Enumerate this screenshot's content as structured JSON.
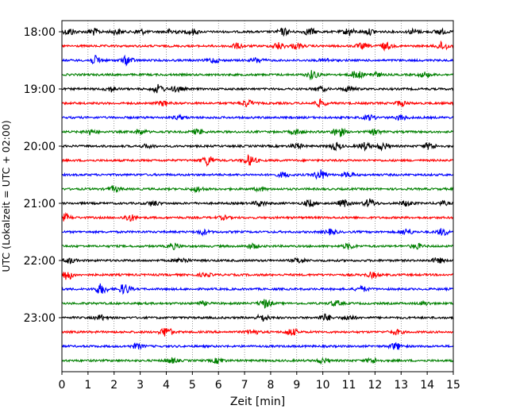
{
  "chart_data": {
    "type": "line",
    "title": "",
    "xlabel": "Zeit  [min]",
    "ylabel": "UTC (Lokalzeit = UTC + 02:00)",
    "xlim": [
      0,
      15
    ],
    "x_ticks": [
      "0",
      "1",
      "2",
      "3",
      "4",
      "5",
      "6",
      "7",
      "8",
      "9",
      "10",
      "11",
      "12",
      "13",
      "14",
      "15"
    ],
    "y_ticks": [
      "18:00",
      "19:00",
      "20:00",
      "21:00",
      "22:00",
      "23:00"
    ],
    "grid": "vertical dotted at each minute",
    "trace_colors": [
      "#000000",
      "#ff0000",
      "#0000ff",
      "#008000"
    ],
    "traces": [
      {
        "start": "18:00",
        "bursts": [
          [
            0.3,
            4
          ],
          [
            1.2,
            4
          ],
          [
            2.1,
            3
          ],
          [
            3.0,
            3
          ],
          [
            4.2,
            3
          ],
          [
            5.0,
            3
          ],
          [
            8.5,
            4
          ],
          [
            9.5,
            4
          ],
          [
            11.0,
            4
          ],
          [
            11.8,
            3
          ],
          [
            13.5,
            3
          ],
          [
            14.5,
            3
          ]
        ]
      },
      {
        "start": "18:15",
        "bursts": [
          [
            6.7,
            3
          ],
          [
            8.3,
            4
          ],
          [
            9.0,
            3
          ],
          [
            11.5,
            3
          ],
          [
            12.4,
            4
          ],
          [
            14.6,
            5
          ]
        ]
      },
      {
        "start": "18:30",
        "bursts": [
          [
            1.3,
            5
          ],
          [
            2.5,
            5
          ],
          [
            5.8,
            3
          ],
          [
            7.5,
            3
          ],
          [
            10.1,
            2
          ]
        ]
      },
      {
        "start": "18:45",
        "bursts": [
          [
            9.6,
            5
          ],
          [
            11.3,
            5
          ],
          [
            12.0,
            3
          ],
          [
            13.9,
            3
          ]
        ]
      },
      {
        "start": "19:00",
        "bursts": [
          [
            1.9,
            3
          ],
          [
            3.7,
            5
          ],
          [
            4.4,
            3
          ],
          [
            9.9,
            3
          ],
          [
            11.0,
            3
          ]
        ]
      },
      {
        "start": "19:15",
        "bursts": [
          [
            3.9,
            3
          ],
          [
            7.1,
            4
          ],
          [
            9.9,
            4
          ],
          [
            13.0,
            3
          ]
        ]
      },
      {
        "start": "19:30",
        "bursts": [
          [
            4.5,
            2
          ],
          [
            11.8,
            3
          ],
          [
            13.0,
            3
          ]
        ]
      },
      {
        "start": "19:45",
        "bursts": [
          [
            1.1,
            3
          ],
          [
            3.0,
            3
          ],
          [
            5.2,
            3
          ],
          [
            9.0,
            3
          ],
          [
            10.6,
            6
          ],
          [
            12.0,
            3
          ]
        ]
      },
      {
        "start": "20:00",
        "bursts": [
          [
            3.3,
            2
          ],
          [
            9.0,
            3
          ],
          [
            10.5,
            4
          ],
          [
            11.6,
            4
          ],
          [
            12.3,
            4
          ],
          [
            14.1,
            4
          ]
        ]
      },
      {
        "start": "20:15",
        "bursts": [
          [
            5.6,
            6
          ],
          [
            7.2,
            6
          ]
        ]
      },
      {
        "start": "20:30",
        "bursts": [
          [
            8.5,
            3
          ],
          [
            9.9,
            6
          ],
          [
            11.0,
            3
          ]
        ]
      },
      {
        "start": "20:45",
        "bursts": [
          [
            2.0,
            3
          ],
          [
            5.2,
            3
          ],
          [
            7.6,
            2
          ]
        ]
      },
      {
        "start": "21:00",
        "bursts": [
          [
            3.5,
            3
          ],
          [
            7.6,
            3
          ],
          [
            9.5,
            4
          ],
          [
            10.8,
            4
          ],
          [
            11.8,
            5
          ],
          [
            13.2,
            3
          ],
          [
            14.6,
            2
          ]
        ]
      },
      {
        "start": "21:15",
        "bursts": [
          [
            0.1,
            4
          ],
          [
            2.6,
            4
          ],
          [
            6.2,
            2
          ]
        ]
      },
      {
        "start": "21:30",
        "bursts": [
          [
            5.4,
            3
          ],
          [
            10.3,
            3
          ],
          [
            13.2,
            4
          ],
          [
            14.6,
            4
          ]
        ]
      },
      {
        "start": "21:45",
        "bursts": [
          [
            4.3,
            3
          ],
          [
            7.3,
            3
          ],
          [
            11.0,
            3
          ],
          [
            13.6,
            3
          ]
        ]
      },
      {
        "start": "22:00",
        "bursts": [
          [
            0.3,
            3
          ],
          [
            4.6,
            3
          ],
          [
            9.1,
            3
          ],
          [
            14.4,
            3
          ]
        ]
      },
      {
        "start": "22:15",
        "bursts": [
          [
            0.2,
            6
          ],
          [
            5.5,
            2
          ],
          [
            11.9,
            3
          ]
        ]
      },
      {
        "start": "22:30",
        "bursts": [
          [
            1.5,
            6
          ],
          [
            2.4,
            6
          ],
          [
            11.5,
            3
          ]
        ]
      },
      {
        "start": "22:45",
        "bursts": [
          [
            5.4,
            2
          ],
          [
            7.8,
            5
          ],
          [
            10.5,
            3
          ],
          [
            13.9,
            2
          ]
        ]
      },
      {
        "start": "23:00",
        "bursts": [
          [
            1.5,
            3
          ],
          [
            7.7,
            4
          ],
          [
            10.1,
            4
          ],
          [
            11.0,
            3
          ]
        ]
      },
      {
        "start": "23:15",
        "bursts": [
          [
            4.0,
            6
          ],
          [
            7.3,
            3
          ],
          [
            8.8,
            4
          ],
          [
            12.8,
            3
          ]
        ]
      },
      {
        "start": "23:30",
        "bursts": [
          [
            2.9,
            3
          ],
          [
            12.8,
            4
          ]
        ]
      },
      {
        "start": "23:45",
        "bursts": [
          [
            4.2,
            3
          ],
          [
            6.0,
            3
          ],
          [
            10.0,
            3
          ],
          [
            11.9,
            3
          ]
        ]
      }
    ]
  }
}
